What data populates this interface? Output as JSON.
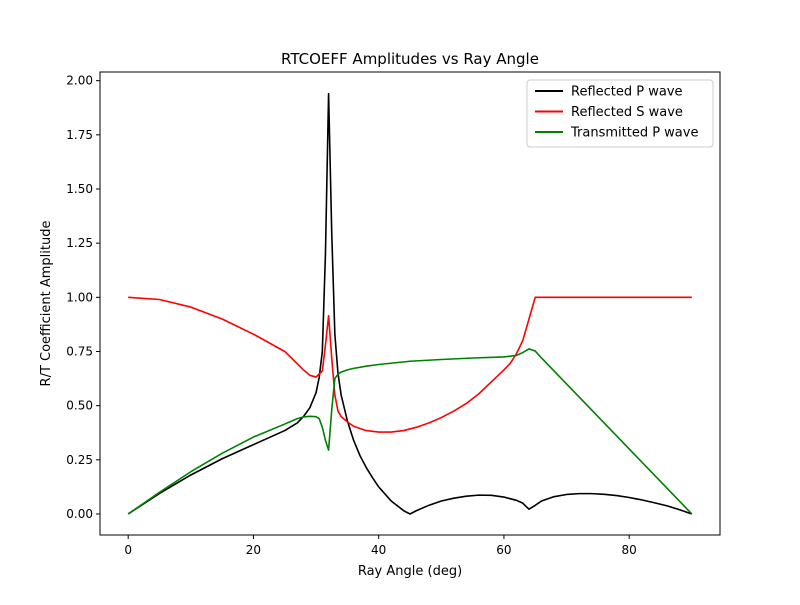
{
  "chart_data": {
    "type": "line",
    "title": "RTCOEFF Amplitudes vs Ray Angle",
    "xlabel": "Ray Angle (deg)",
    "ylabel": "R/T Coefficient Amplitude",
    "xlim": [
      -4.5,
      94.5
    ],
    "ylim": [
      -0.097,
      2.04
    ],
    "xticks": [
      0,
      20,
      40,
      60,
      80
    ],
    "xtick_labels": [
      "0",
      "20",
      "40",
      "60",
      "80"
    ],
    "yticks": [
      0.0,
      0.25,
      0.5,
      0.75,
      1.0,
      1.25,
      1.5,
      1.75,
      2.0
    ],
    "ytick_labels": [
      "0.00",
      "0.25",
      "0.50",
      "0.75",
      "1.00",
      "1.25",
      "1.50",
      "1.75",
      "2.00"
    ],
    "grid": false,
    "legend_position": "top-right",
    "series": [
      {
        "name": "Reflected P wave",
        "color": "#000000",
        "x": [
          0,
          5,
          10,
          15,
          20,
          25,
          27,
          28,
          29,
          30,
          30.5,
          31,
          31.5,
          32,
          32.5,
          33,
          33.5,
          34,
          35,
          36,
          37,
          38,
          39,
          40,
          42,
          44,
          45,
          46,
          48,
          50,
          52,
          54,
          56,
          58,
          60,
          62,
          63,
          64,
          65,
          66,
          68,
          70,
          72,
          74,
          76,
          78,
          80,
          82,
          84,
          86,
          88,
          90
        ],
        "y": [
          0.0,
          0.095,
          0.18,
          0.255,
          0.32,
          0.385,
          0.42,
          0.45,
          0.49,
          0.56,
          0.63,
          0.75,
          1.2,
          1.94,
          1.3,
          0.83,
          0.65,
          0.55,
          0.43,
          0.34,
          0.27,
          0.215,
          0.168,
          0.125,
          0.06,
          0.015,
          0.0,
          0.015,
          0.04,
          0.06,
          0.073,
          0.082,
          0.087,
          0.086,
          0.078,
          0.063,
          0.05,
          0.022,
          0.04,
          0.06,
          0.08,
          0.09,
          0.094,
          0.094,
          0.091,
          0.085,
          0.076,
          0.065,
          0.052,
          0.038,
          0.02,
          0.0
        ]
      },
      {
        "name": "Reflected S wave",
        "color": "#ff0000",
        "x": [
          0,
          5,
          10,
          15,
          20,
          25,
          28,
          29,
          30,
          31,
          31.5,
          32,
          32.5,
          33,
          33.5,
          34,
          35,
          36,
          38,
          40,
          42,
          44,
          46,
          48,
          50,
          52,
          54,
          56,
          58,
          60,
          61,
          62,
          63,
          64,
          65,
          66,
          70,
          75,
          80,
          85,
          90
        ],
        "y": [
          1.0,
          0.99,
          0.955,
          0.9,
          0.83,
          0.75,
          0.665,
          0.64,
          0.632,
          0.66,
          0.78,
          0.915,
          0.72,
          0.55,
          0.475,
          0.45,
          0.425,
          0.405,
          0.385,
          0.378,
          0.378,
          0.385,
          0.4,
          0.42,
          0.445,
          0.475,
          0.51,
          0.555,
          0.61,
          0.665,
          0.695,
          0.74,
          0.8,
          0.9,
          1.0,
          1.0,
          1.0,
          1.0,
          1.0,
          1.0,
          1.0
        ]
      },
      {
        "name": "Transmitted P wave",
        "color": "#008000",
        "x": [
          0,
          5,
          10,
          15,
          20,
          25,
          27,
          28,
          29,
          30,
          30.5,
          31,
          31.5,
          32,
          32.5,
          33,
          33.5,
          34,
          35,
          36,
          38,
          40,
          45,
          50,
          55,
          60,
          62,
          63,
          64,
          65,
          66,
          70,
          75,
          80,
          85,
          90
        ],
        "y": [
          0.0,
          0.1,
          0.195,
          0.28,
          0.355,
          0.415,
          0.44,
          0.448,
          0.451,
          0.449,
          0.44,
          0.4,
          0.34,
          0.295,
          0.48,
          0.625,
          0.645,
          0.655,
          0.665,
          0.672,
          0.682,
          0.69,
          0.705,
          0.713,
          0.72,
          0.725,
          0.732,
          0.745,
          0.762,
          0.752,
          0.72,
          0.6,
          0.45,
          0.3,
          0.15,
          0.0
        ]
      }
    ]
  }
}
